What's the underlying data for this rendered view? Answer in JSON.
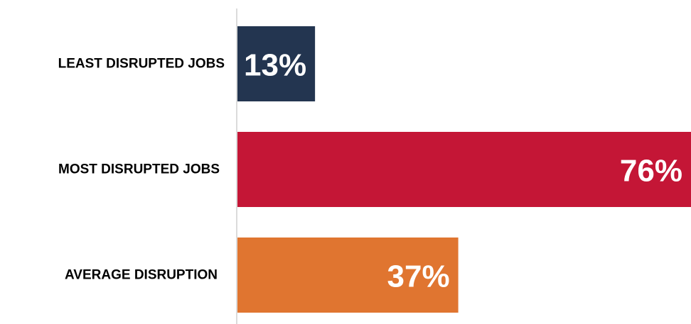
{
  "chart_data": {
    "type": "bar",
    "orientation": "horizontal",
    "categories": [
      "LEAST DISRUPTED JOBS",
      "MOST DISRUPTED JOBS",
      "AVERAGE DISRUPTION"
    ],
    "values": [
      13,
      76,
      37
    ],
    "value_labels": [
      "13%",
      "76%",
      "37%"
    ],
    "colors": [
      "#233550",
      "#c41636",
      "#e07530"
    ],
    "xlim": [
      0,
      76
    ],
    "grid": false,
    "title": "",
    "xlabel": "",
    "ylabel": ""
  }
}
